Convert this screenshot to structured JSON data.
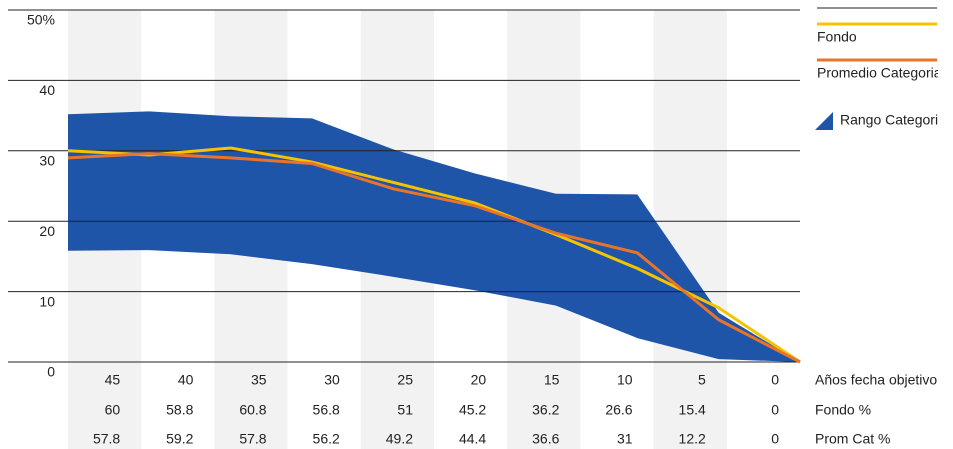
{
  "chart_data": {
    "type": "line",
    "categories": [
      "45",
      "40",
      "35",
      "30",
      "25",
      "20",
      "15",
      "10",
      "5",
      "0"
    ],
    "x_label": "Años fecha objetivo",
    "ylim": [
      0,
      50
    ],
    "yticks": [
      0,
      10,
      20,
      30,
      40,
      {
        "value": 50,
        "label": "50%"
      }
    ],
    "grid": true,
    "legend": "right",
    "series": [
      {
        "name": "Fondo",
        "color": "#f5c400",
        "values": [
          30,
          29.4,
          30.4,
          28.4,
          25.5,
          22.6,
          18.1,
          13.3,
          7.7,
          0
        ]
      },
      {
        "name": "Promedio Categoria",
        "color": "#e8742a",
        "values": [
          29,
          29.6,
          29,
          28.2,
          24.6,
          22.2,
          18.3,
          15.5,
          6,
          0
        ]
      },
      {
        "name": "Rango Categoria",
        "color": "#1f55a8",
        "upper": [
          35.2,
          35.6,
          34.9,
          34.6,
          30.2,
          26.8,
          23.9,
          23.8,
          7,
          0
        ],
        "lower": [
          15.8,
          15.9,
          15.3,
          13.9,
          12.1,
          10.2,
          8,
          3.4,
          0.4,
          0
        ]
      }
    ],
    "table": {
      "rows": [
        {
          "label": "Fondo %",
          "values": [
            60,
            58.8,
            60.8,
            56.8,
            51,
            45.2,
            36.2,
            26.6,
            15.4,
            0
          ]
        },
        {
          "label": "Prom Cat %",
          "values": [
            57.8,
            59.2,
            57.8,
            56.2,
            49.2,
            44.4,
            36.6,
            31,
            12.2,
            0
          ]
        }
      ]
    }
  }
}
